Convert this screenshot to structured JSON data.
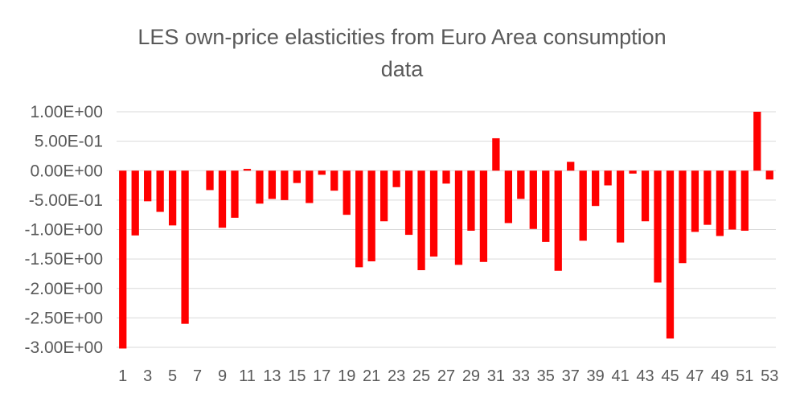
{
  "chart_data": {
    "type": "bar",
    "title_lines": [
      "LES own-price elasticities from Euro Area consumption",
      "data"
    ],
    "xlabel": "",
    "ylabel": "",
    "categories": [
      "1",
      "2",
      "3",
      "4",
      "5",
      "6",
      "7",
      "8",
      "9",
      "10",
      "11",
      "12",
      "13",
      "14",
      "15",
      "16",
      "17",
      "18",
      "19",
      "20",
      "21",
      "22",
      "23",
      "24",
      "25",
      "26",
      "27",
      "28",
      "29",
      "30",
      "31",
      "32",
      "33",
      "34",
      "35",
      "36",
      "37",
      "38",
      "39",
      "40",
      "41",
      "42",
      "43",
      "44",
      "45",
      "46",
      "47",
      "48",
      "49",
      "50",
      "51",
      "52",
      "53"
    ],
    "visible_x_labels": [
      "1",
      "3",
      "5",
      "7",
      "9",
      "11",
      "13",
      "15",
      "17",
      "19",
      "21",
      "23",
      "25",
      "27",
      "29",
      "31",
      "33",
      "35",
      "37",
      "39",
      "41",
      "43",
      "45",
      "47",
      "49",
      "51",
      "53"
    ],
    "values": [
      -3.02,
      -1.1,
      -0.52,
      -0.7,
      -0.93,
      -2.6,
      0,
      -0.33,
      -0.97,
      -0.8,
      0.03,
      -0.56,
      -0.48,
      -0.5,
      -0.21,
      -0.55,
      -0.07,
      -0.34,
      -0.75,
      -1.64,
      -1.54,
      -0.86,
      -0.28,
      -1.09,
      -1.69,
      -1.46,
      -0.22,
      -1.6,
      -1.02,
      -1.55,
      0.55,
      -0.89,
      -0.48,
      -0.99,
      -1.21,
      -1.7,
      0.15,
      -1.19,
      -0.6,
      -0.25,
      -1.22,
      -0.05,
      -0.86,
      -1.9,
      -2.85,
      -1.57,
      -1.04,
      -0.92,
      -1.11,
      -1.0,
      -1.02,
      1.0,
      -0.15
    ],
    "yticks": [
      1.0,
      0.5,
      0.0,
      -0.5,
      -1.0,
      -1.5,
      -2.0,
      -2.5,
      -3.0
    ],
    "ytick_labels": [
      "1.00E+00",
      "5.00E-01",
      "0.00E+00",
      "-5.00E-01",
      "-1.00E+00",
      "-1.50E+00",
      "-2.00E+00",
      "-2.50E+00",
      "-3.00E+00"
    ],
    "ylim": [
      -3.0,
      1.0
    ],
    "grid": true,
    "legend": "none",
    "bar_color": "#ff0000",
    "grid_color": "#d9d9d9",
    "text_color": "#595959"
  }
}
